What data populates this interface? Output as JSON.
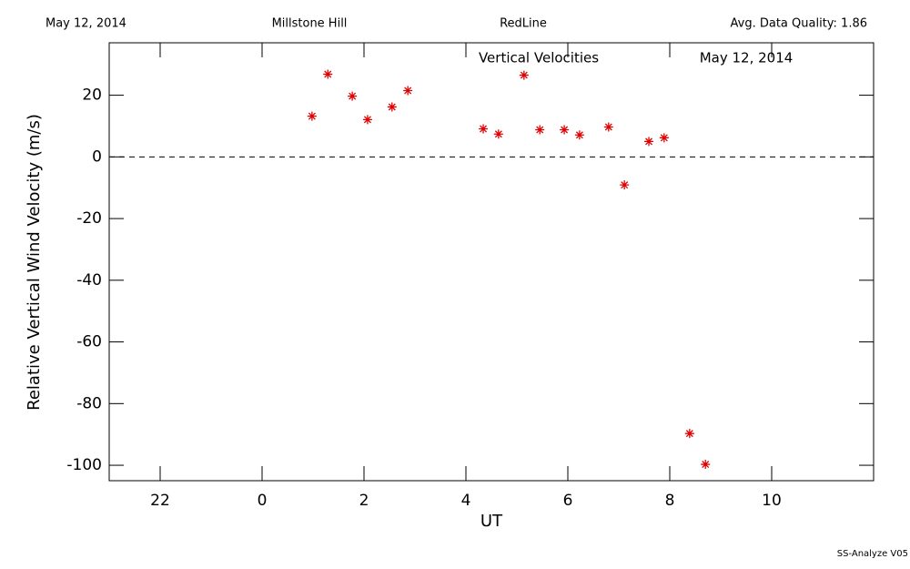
{
  "chart_data": {
    "type": "scatter",
    "header": {
      "date": "May 12, 2014",
      "site": "Millstone Hill",
      "instrument": "RedLine",
      "quality": "Avg. Data Quality: 1.86"
    },
    "title": "Vertical Velocities",
    "subtitle": "May 12, 2014",
    "x_label": "UT",
    "y_label": "Relative Vertical Wind Velocity (m/s)",
    "footer": "SS-Analyze V05",
    "xlim": [
      -3,
      12
    ],
    "ylim": [
      -105,
      37
    ],
    "xticks": [
      {
        "value": -2,
        "label": "22"
      },
      0,
      2,
      4,
      6,
      8,
      10
    ],
    "yticks": [
      -100,
      -80,
      -60,
      -40,
      -20,
      0,
      20
    ],
    "reference_line": 0,
    "series": [
      {
        "color": "#e00000",
        "x": [
          0.98,
          1.29,
          1.77,
          2.07,
          2.55,
          2.86,
          4.34,
          4.64,
          5.14,
          5.45,
          5.93,
          6.23,
          6.8,
          7.11,
          7.59,
          7.89,
          8.39,
          8.7
        ],
        "values": [
          13.2,
          26.8,
          19.7,
          12.1,
          16.2,
          21.5,
          9.1,
          7.4,
          26.5,
          8.8,
          8.8,
          7.1,
          9.7,
          -9.1,
          5.0,
          6.2,
          -89.7,
          -99.7
        ]
      }
    ]
  }
}
